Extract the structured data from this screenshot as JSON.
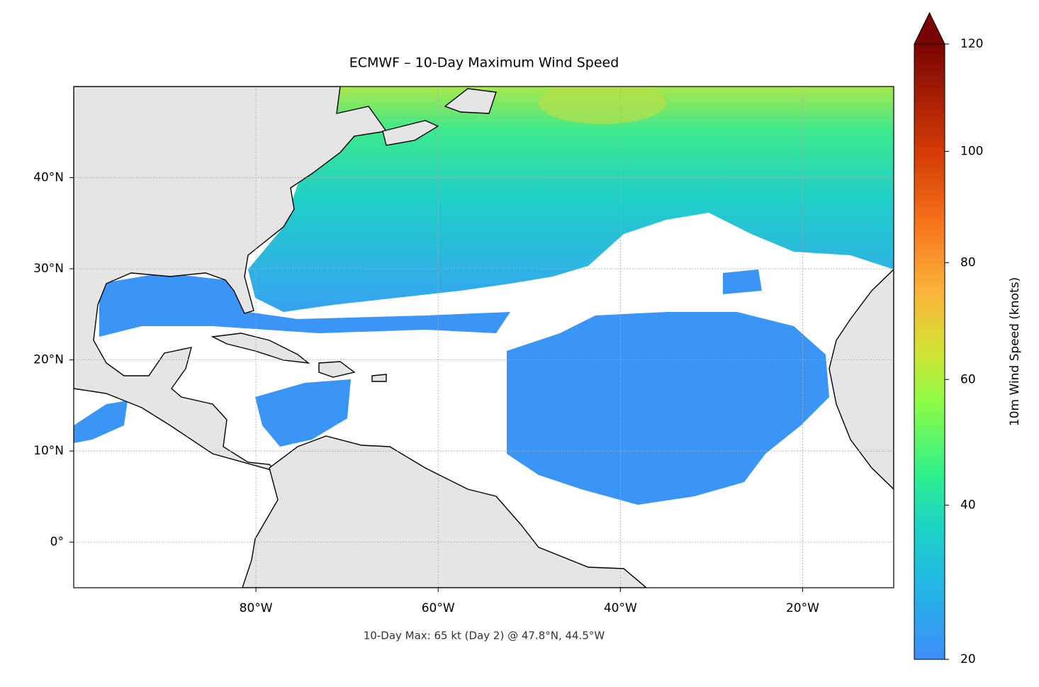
{
  "chart_data": {
    "type": "map",
    "title": "ECMWF – 10-Day Maximum Wind Speed",
    "annotation": "10-Day Max: 65 kt (Day 2) @ 47.8°N, 44.5°W",
    "xlim": [
      -100,
      -10
    ],
    "ylim": [
      -5,
      50
    ],
    "xticks": [
      {
        "value": -80,
        "label": "80°W"
      },
      {
        "value": -60,
        "label": "60°W"
      },
      {
        "value": -40,
        "label": "40°W"
      },
      {
        "value": -20,
        "label": "20°W"
      }
    ],
    "yticks": [
      {
        "value": 0,
        "label": "0°"
      },
      {
        "value": 10,
        "label": "10°N"
      },
      {
        "value": 20,
        "label": "20°N"
      },
      {
        "value": 30,
        "label": "30°N"
      },
      {
        "value": 40,
        "label": "40°N"
      }
    ],
    "grid": true,
    "colorbar": {
      "label": "10m Wind Speed (knots)",
      "lim": [
        20,
        120
      ],
      "ticks": [
        20,
        40,
        60,
        80,
        100,
        120
      ],
      "power": 0.86,
      "extend": "max"
    }
  }
}
